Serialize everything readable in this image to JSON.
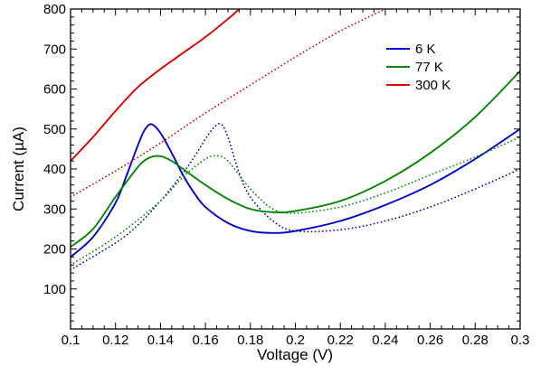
{
  "chart_data": {
    "type": "line",
    "title": "",
    "xlabel": "Voltage (V)",
    "ylabel_prefix": "Current (",
    "ylabel_unit": "µA",
    "ylabel_suffix": ")",
    "xlim": [
      0.1,
      0.3
    ],
    "ylim": [
      0,
      800
    ],
    "grid": false,
    "legend_position": "top-right",
    "x_ticks": [
      "0.1",
      "0.12",
      "0.14",
      "0.16",
      "0.18",
      "0.2",
      "0.22",
      "0.24",
      "0.26",
      "0.28",
      "0.3"
    ],
    "y_ticks": [
      "100",
      "200",
      "300",
      "400",
      "500",
      "600",
      "700",
      "800"
    ],
    "series": [
      {
        "name": "6 K",
        "color": "#0000cc",
        "style": "solid",
        "x": [
          0.1,
          0.11,
          0.12,
          0.125,
          0.13,
          0.133,
          0.136,
          0.14,
          0.145,
          0.15,
          0.155,
          0.16,
          0.17,
          0.18,
          0.19,
          0.2,
          0.22,
          0.24,
          0.26,
          0.28,
          0.3
        ],
        "y": [
          180,
          230,
          315,
          385,
          460,
          498,
          512,
          490,
          440,
          385,
          340,
          305,
          265,
          245,
          240,
          245,
          270,
          310,
          360,
          425,
          500
        ]
      },
      {
        "name": "",
        "color": "#0000cc",
        "style": "dotted",
        "x": [
          0.1,
          0.12,
          0.13,
          0.14,
          0.15,
          0.155,
          0.16,
          0.164,
          0.167,
          0.17,
          0.175,
          0.18,
          0.19,
          0.2,
          0.22,
          0.24,
          0.26,
          0.28,
          0.3
        ],
        "y": [
          148,
          215,
          260,
          320,
          390,
          430,
          475,
          505,
          512,
          480,
          390,
          330,
          270,
          245,
          248,
          270,
          305,
          350,
          400
        ]
      },
      {
        "name": "77 K",
        "color": "#008800",
        "style": "solid",
        "x": [
          0.1,
          0.11,
          0.12,
          0.13,
          0.135,
          0.14,
          0.145,
          0.15,
          0.16,
          0.17,
          0.18,
          0.19,
          0.2,
          0.22,
          0.24,
          0.26,
          0.28,
          0.3
        ],
        "y": [
          205,
          250,
          330,
          405,
          428,
          432,
          420,
          400,
          360,
          325,
          300,
          292,
          295,
          320,
          370,
          440,
          530,
          645
        ]
      },
      {
        "name": "",
        "color": "#008800",
        "style": "dotted",
        "x": [
          0.1,
          0.12,
          0.14,
          0.15,
          0.16,
          0.165,
          0.17,
          0.18,
          0.19,
          0.2,
          0.22,
          0.24,
          0.26,
          0.28,
          0.3
        ],
        "y": [
          160,
          230,
          320,
          380,
          425,
          433,
          420,
          350,
          300,
          290,
          305,
          340,
          385,
          430,
          480
        ]
      },
      {
        "name": "300 K",
        "color": "#dd0000",
        "style": "solid",
        "x": [
          0.1,
          0.11,
          0.12,
          0.13,
          0.14,
          0.15,
          0.16,
          0.17,
          0.175
        ],
        "y": [
          420,
          480,
          545,
          605,
          650,
          690,
          730,
          775,
          800
        ]
      },
      {
        "name": "",
        "color": "#dd0000",
        "style": "dotted",
        "x": [
          0.1,
          0.12,
          0.14,
          0.16,
          0.18,
          0.2,
          0.22,
          0.24
        ],
        "y": [
          330,
          395,
          465,
          540,
          610,
          680,
          745,
          800
        ]
      }
    ]
  }
}
